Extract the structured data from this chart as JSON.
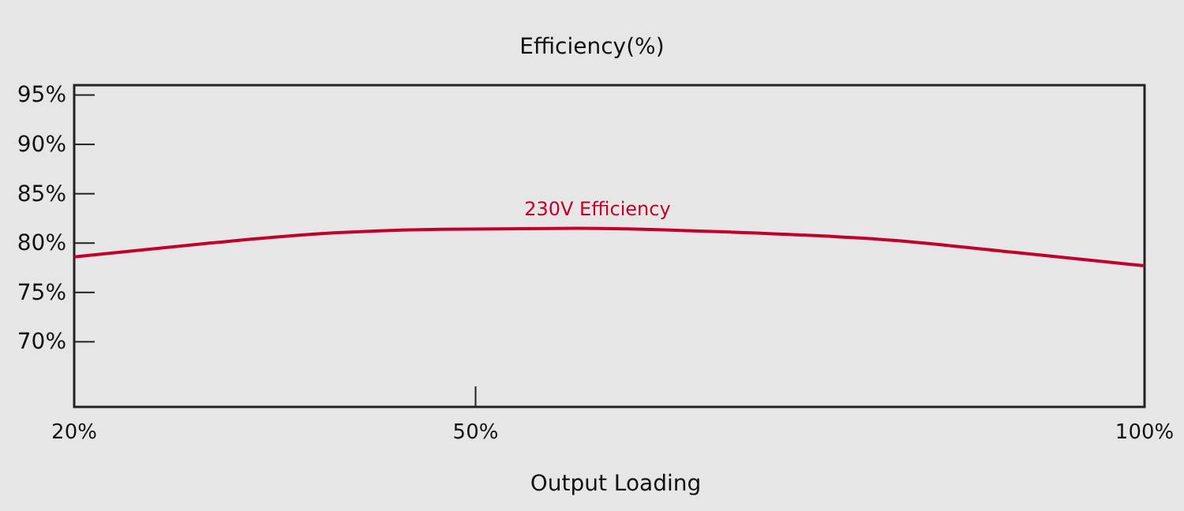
{
  "chart_data": {
    "type": "line",
    "title": "Efficiency(%)",
    "xlabel": "Output Loading",
    "xlim": [
      20,
      100
    ],
    "xticks": [
      {
        "value": 20,
        "label": "20%"
      },
      {
        "value": 50,
        "label": "50%"
      },
      {
        "value": 100,
        "label": "100%"
      }
    ],
    "ylim": [
      63.4,
      96
    ],
    "yticks": [
      {
        "value": 70,
        "label": "70%"
      },
      {
        "value": 75,
        "label": "75%"
      },
      {
        "value": 80,
        "label": "80%"
      },
      {
        "value": 85,
        "label": "85%"
      },
      {
        "value": 90,
        "label": "90%"
      },
      {
        "value": 95,
        "label": "95%"
      }
    ],
    "grid": false,
    "legend": false,
    "marker": "none",
    "line_style": "solid",
    "series": [
      {
        "name": "230V Efficiency",
        "color": "#c0002a",
        "x": [
          20,
          30.1,
          37.8,
          47.5,
          57.7,
          69.3,
          81,
          90.7,
          100
        ],
        "values": [
          78.6,
          80.0,
          80.9,
          81.4,
          81.5,
          81.1,
          80.3,
          79.0,
          77.7
        ]
      }
    ]
  }
}
